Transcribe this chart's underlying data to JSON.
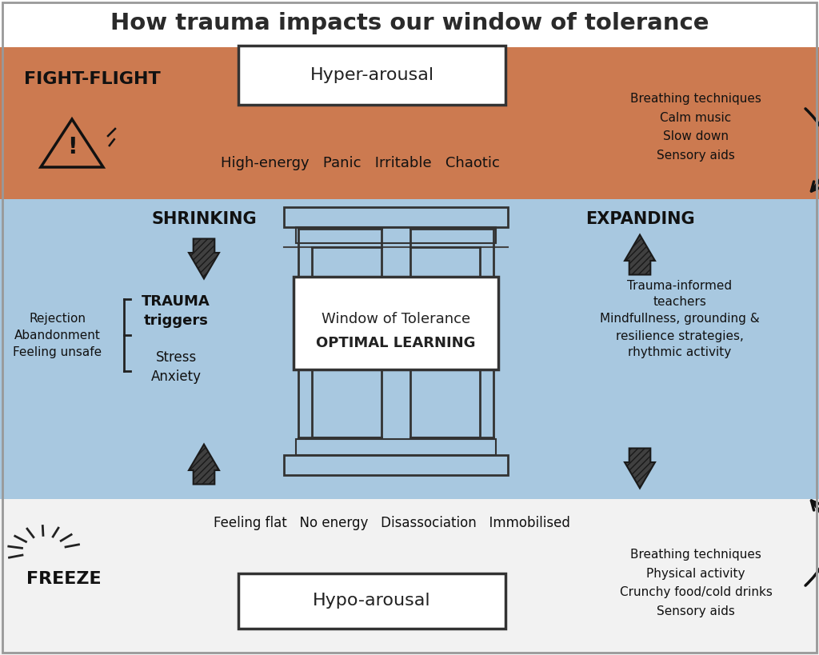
{
  "title": "How trauma impacts our window of tolerance",
  "title_fontsize": 21,
  "title_color": "#2a2a2a",
  "bg_color": "#ffffff",
  "top_band_color": "#cc7a50",
  "mid_band_color": "#a8c8e0",
  "bot_band_color": "#f2f2f2",
  "fight_flight_text": "FIGHT-FLIGHT",
  "freeze_text": "FREEZE",
  "hyper_box_text": "Hyper-arousal",
  "hypo_box_text": "Hypo-arousal",
  "window_line1": "Window of Tolerance",
  "window_line2": "OPTIMAL LEARNING",
  "top_descriptors": "High-energy   Panic   Irritable   Chaotic",
  "bot_descriptors": "Feeling flat   No energy   Disassociation   Immobilised",
  "shrinking_text": "SHRINKING",
  "expanding_text": "EXPANDING",
  "trauma_triggers_text": "TRAUMA\ntriggers",
  "stress_anxiety_text": "Stress\nAnxiety",
  "rejection_text": "Rejection\nAbandonment\nFeeling unsafe",
  "top_right_text": "Breathing techniques\nCalm music\nSlow down\nSensory aids",
  "bot_right_text": "Breathing techniques\nPhysical activity\nCrunchy food/cold drinks\nSensory aids",
  "trauma_informed_text": "Trauma-informed\nteachers\nMindfullness, grounding &\nresilience strategies,\nrhythmic activity",
  "text_dark": "#1a1a1a"
}
